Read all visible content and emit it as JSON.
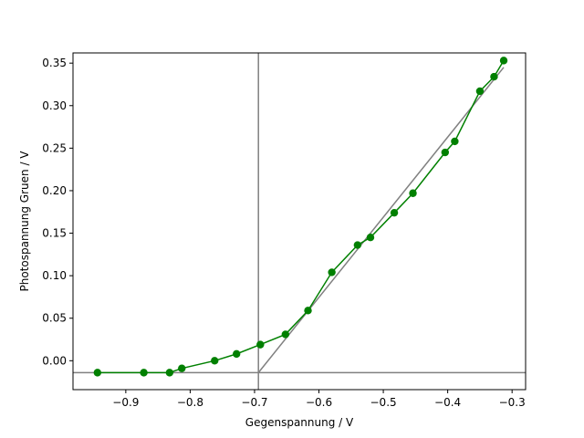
{
  "chart_data": {
    "type": "line",
    "title": "",
    "xlabel": "Gegenspannung / V",
    "ylabel": "Photospannung Gruen / V",
    "xlim": [
      -0.982,
      -0.279
    ],
    "ylim": [
      -0.034,
      0.362
    ],
    "grid": false,
    "xticks": [
      -0.9,
      -0.8,
      -0.7,
      -0.6,
      -0.5,
      -0.4,
      -0.3
    ],
    "xtick_labels": [
      "−0.9",
      "−0.8",
      "−0.7",
      "−0.6",
      "−0.5",
      "−0.4",
      "−0.3"
    ],
    "yticks": [
      0.0,
      0.05,
      0.1,
      0.15,
      0.2,
      0.25,
      0.3,
      0.35
    ],
    "ytick_labels": [
      "0.00",
      "0.05",
      "0.10",
      "0.15",
      "0.20",
      "0.25",
      "0.30",
      "0.35"
    ],
    "series": [
      {
        "color": "#008000",
        "marker": "circle",
        "x": [
          -0.944,
          -0.872,
          -0.832,
          -0.813,
          -0.762,
          -0.728,
          -0.691,
          -0.652,
          -0.617,
          -0.58,
          -0.54,
          -0.52,
          -0.483,
          -0.454,
          -0.404,
          -0.389,
          -0.35,
          -0.328,
          -0.313
        ],
        "y": [
          -0.014,
          -0.014,
          -0.014,
          -0.009,
          0.0,
          0.008,
          0.019,
          0.031,
          0.059,
          0.104,
          0.136,
          0.145,
          0.174,
          0.197,
          0.245,
          0.258,
          0.317,
          0.334,
          0.353
        ]
      }
    ],
    "reference_lines": [
      {
        "kind": "vertical",
        "x": -0.694,
        "color": "#808080"
      },
      {
        "kind": "horizontal",
        "y": -0.014,
        "color": "#808080"
      },
      {
        "kind": "segment",
        "x1": -0.694,
        "y1": -0.014,
        "x2": -0.313,
        "y2": 0.345,
        "color": "#808080"
      }
    ]
  }
}
